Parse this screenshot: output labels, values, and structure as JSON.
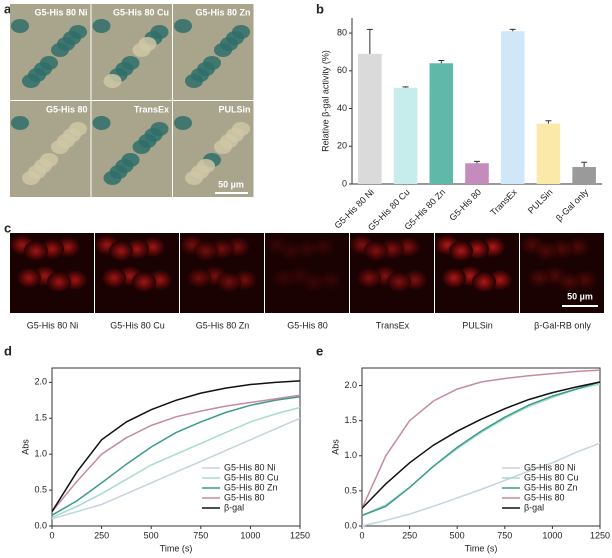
{
  "panel_labels": [
    "a",
    "b",
    "c",
    "d",
    "e"
  ],
  "micrographs_a": {
    "labels": [
      "G5-His 80 Ni",
      "G5-His 80 Cu",
      "G5-His 80 Zn",
      "G5-His 80",
      "TransEx",
      "PULSin"
    ],
    "scale_bar": "50 µm"
  },
  "micrographs_c": {
    "labels": [
      "G5-His 80 Ni",
      "G5-His 80 Cu",
      "G5-His 80 Zn",
      "G5-His 80",
      "TransEx",
      "PULSin",
      "β-Gal-RB only"
    ],
    "scale_bar": "50 µm"
  },
  "chart_data": [
    {
      "type": "bar",
      "y_label": "Relative β-gal activity (%)",
      "categories": [
        "G5-His 80 Ni",
        "G5-His 80 Cu",
        "G5-His 80 Zn",
        "G5-His 80",
        "TransEx",
        "PULSin",
        "β-Gal only"
      ],
      "values": [
        69,
        51,
        64,
        11,
        81,
        32,
        9
      ],
      "errors": [
        13,
        0.5,
        1.5,
        1,
        1,
        1.5,
        2.5
      ],
      "colors": [
        "#dadada",
        "#c6eceb",
        "#5fb9a8",
        "#c58bbd",
        "#cfe7f8",
        "#fbe9aa",
        "#9a9a9a"
      ],
      "ylim": [
        0,
        88
      ],
      "yticks": [
        0,
        20,
        40,
        60,
        80
      ]
    },
    {
      "type": "line",
      "x_label": "Time (s)",
      "y_label": "Abs",
      "x": [
        0,
        125,
        250,
        375,
        500,
        625,
        750,
        875,
        1000,
        1125,
        1250
      ],
      "series": [
        {
          "name": "G5-His 80 Ni",
          "color": "#c6d4de",
          "values": [
            0.1,
            0.2,
            0.3,
            0.45,
            0.6,
            0.75,
            0.9,
            1.05,
            1.2,
            1.35,
            1.5
          ]
        },
        {
          "name": "G5-His 80 Cu",
          "color": "#a6dccf",
          "values": [
            0.12,
            0.27,
            0.45,
            0.65,
            0.85,
            1.0,
            1.15,
            1.3,
            1.45,
            1.56,
            1.65
          ]
        },
        {
          "name": "G5-His 80 Zn",
          "color": "#3b9c8c",
          "values": [
            0.15,
            0.35,
            0.6,
            0.86,
            1.1,
            1.3,
            1.45,
            1.58,
            1.68,
            1.75,
            1.8
          ]
        },
        {
          "name": "G5-His 80",
          "color": "#c68aa2",
          "values": [
            0.2,
            0.62,
            1.0,
            1.23,
            1.4,
            1.52,
            1.6,
            1.67,
            1.72,
            1.77,
            1.82
          ]
        },
        {
          "name": "β-gal",
          "color": "#111111",
          "values": [
            0.2,
            0.75,
            1.2,
            1.45,
            1.62,
            1.75,
            1.85,
            1.92,
            1.97,
            2.0,
            2.02
          ]
        }
      ],
      "xlim": [
        0,
        1250
      ],
      "xticks": [
        0,
        250,
        500,
        750,
        1000,
        1250
      ],
      "ylim": [
        0,
        2.2
      ],
      "yticks": [
        {
          "value": 0,
          "label": "0.0"
        },
        {
          "value": 0.5,
          "label": "0.5"
        },
        {
          "value": 1,
          "label": "1.0"
        },
        {
          "value": 1.5,
          "label": "1.5"
        },
        {
          "value": 2,
          "label": "2.0"
        }
      ],
      "legend": "lower right"
    },
    {
      "type": "line",
      "x_label": "Time (s)",
      "y_label": "Abs",
      "x": [
        0,
        125,
        250,
        375,
        500,
        625,
        750,
        875,
        1000,
        1125,
        1250
      ],
      "series": [
        {
          "name": "G5-His 80 Ni",
          "color": "#c6d4de",
          "values": [
            0.0,
            0.08,
            0.17,
            0.28,
            0.4,
            0.52,
            0.65,
            0.78,
            0.9,
            1.05,
            1.18
          ]
        },
        {
          "name": "G5-His 80 Cu",
          "color": "#a6dccf",
          "values": [
            0.15,
            0.3,
            0.55,
            0.85,
            1.1,
            1.33,
            1.53,
            1.7,
            1.83,
            1.95,
            2.02
          ]
        },
        {
          "name": "G5-His 80 Zn",
          "color": "#3b9c8c",
          "values": [
            0.15,
            0.28,
            0.55,
            0.85,
            1.12,
            1.35,
            1.55,
            1.72,
            1.85,
            1.95,
            2.05
          ]
        },
        {
          "name": "G5-His 80",
          "color": "#c68aa2",
          "values": [
            0.25,
            1.0,
            1.5,
            1.78,
            1.95,
            2.05,
            2.1,
            2.14,
            2.17,
            2.2,
            2.22
          ]
        },
        {
          "name": "β-gal",
          "color": "#111111",
          "values": [
            0.25,
            0.6,
            0.9,
            1.15,
            1.35,
            1.52,
            1.67,
            1.8,
            1.9,
            1.98,
            2.05
          ]
        }
      ],
      "xlim": [
        0,
        1250
      ],
      "xticks": [
        0,
        250,
        500,
        750,
        1000,
        1250
      ],
      "ylim": [
        0,
        2.25
      ],
      "yticks": [
        {
          "value": 0,
          "label": "0.0"
        },
        {
          "value": 0.5,
          "label": "0.5"
        },
        {
          "value": 1,
          "label": "1.0"
        },
        {
          "value": 1.5,
          "label": "1.5"
        },
        {
          "value": 2,
          "label": "2.0"
        }
      ],
      "legend": "lower right"
    }
  ]
}
